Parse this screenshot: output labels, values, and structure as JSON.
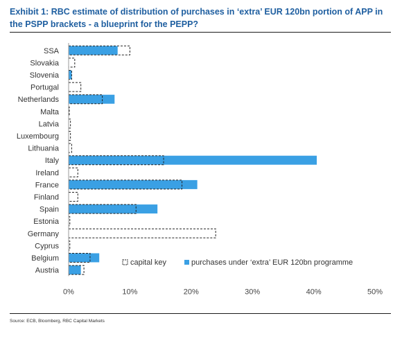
{
  "header": {
    "title": "Exhibit 1: RBC estimate of distribution of purchases in ‘extra’ EUR 120bn portion of APP in the PSPP brackets - a blueprint for the PEPP?"
  },
  "footer": {
    "source": "Source: ECB, Bloomberg, RBC Capital Markets"
  },
  "colors": {
    "title": "#1f5fa0",
    "purchases_fill": "#3aa0e4",
    "capital_key_border": "#222222"
  },
  "chart_data": {
    "type": "bar",
    "orientation": "horizontal",
    "categories": [
      "SSA",
      "Slovakia",
      "Slovenia",
      "Portugal",
      "Netherlands",
      "Malta",
      "Latvia",
      "Luxembourg",
      "Lithuania",
      "Italy",
      "Ireland",
      "France",
      "Finland",
      "Spain",
      "Estonia",
      "Germany",
      "Cyprus",
      "Belgium",
      "Austria"
    ],
    "series": [
      {
        "name": "capital key",
        "style": "dashed-outline",
        "values": [
          10.0,
          1.0,
          0.5,
          2.0,
          5.5,
          0.1,
          0.3,
          0.3,
          0.5,
          15.5,
          1.5,
          18.5,
          1.5,
          11.0,
          0.2,
          24.0,
          0.2,
          3.5,
          2.5
        ]
      },
      {
        "name": "purchases under ‘extra’ EUR 120bn programme",
        "style": "filled",
        "values": [
          8.0,
          0.0,
          0.5,
          0.0,
          7.5,
          0.0,
          0.0,
          0.0,
          0.0,
          40.5,
          0.0,
          21.0,
          0.0,
          14.5,
          0.0,
          0.0,
          0.0,
          5.0,
          2.0
        ]
      }
    ],
    "x_ticks": [
      "0%",
      "10%",
      "20%",
      "30%",
      "40%",
      "50%"
    ],
    "xlim": [
      0,
      50
    ],
    "legend": {
      "placement": "bottom-right-inside"
    },
    "grid": false
  }
}
